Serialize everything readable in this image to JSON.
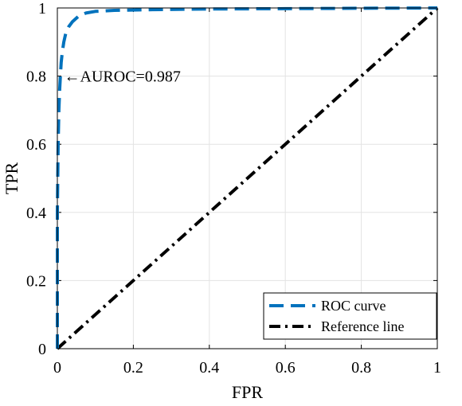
{
  "chart_data": {
    "type": "line",
    "title": "",
    "xlabel": "FPR",
    "ylabel": "TPR",
    "xlim": [
      0,
      1
    ],
    "ylim": [
      0,
      1
    ],
    "xticks": [
      0,
      0.2,
      0.4,
      0.6,
      0.8,
      1
    ],
    "yticks": [
      0,
      0.2,
      0.4,
      0.6,
      0.8,
      1
    ],
    "xtick_labels": [
      "0",
      "0.2",
      "0.4",
      "0.6",
      "0.8",
      "1"
    ],
    "ytick_labels": [
      "0",
      "0.2",
      "0.4",
      "0.6",
      "0.8",
      "1"
    ],
    "grid": true,
    "legend_placement": "bottom-right",
    "series": [
      {
        "name": "ROC curve",
        "style": "dashed",
        "color": "#0072BD",
        "x": [
          0,
          0.0,
          0.002,
          0.004,
          0.006,
          0.008,
          0.01,
          0.013,
          0.017,
          0.022,
          0.03,
          0.04,
          0.055,
          0.075,
          0.1,
          0.15,
          0.25,
          0.4,
          0.6,
          0.8,
          1.0
        ],
        "y": [
          0,
          0.4,
          0.6,
          0.7,
          0.76,
          0.8,
          0.84,
          0.87,
          0.9,
          0.925,
          0.945,
          0.96,
          0.975,
          0.985,
          0.99,
          0.993,
          0.995,
          0.997,
          0.998,
          0.999,
          1.0
        ]
      },
      {
        "name": "Reference line",
        "style": "dash-dot",
        "color": "#000000",
        "x": [
          0,
          1
        ],
        "y": [
          0,
          1
        ]
      }
    ],
    "annotations": [
      {
        "text": "←AUROC=0.987",
        "x": 0.02,
        "y": 0.8
      }
    ]
  }
}
